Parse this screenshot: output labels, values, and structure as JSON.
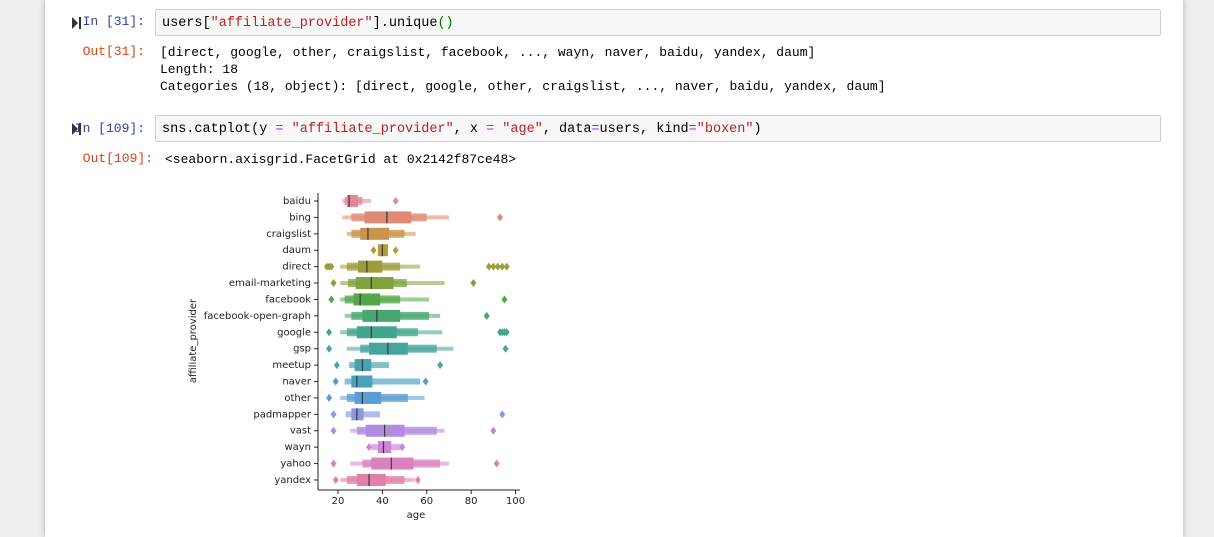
{
  "cells": [
    {
      "prompt": "In [31]:",
      "code": [
        "users[",
        "\"affiliate_provider\"",
        "].unique",
        "()"
      ],
      "output_prompt": "Out[31]:",
      "output": [
        "[direct, google, other, craigslist, facebook, ..., wayn, naver, baidu, yandex, daum]",
        "Length: 18",
        "Categories (18, object): [direct, google, other, craigslist, ..., naver, baidu, yandex, daum]"
      ]
    },
    {
      "prompt": "In [109]:",
      "code": [
        "sns.catplot(y ",
        "=",
        " ",
        "\"affiliate_provider\"",
        ", x ",
        "=",
        " ",
        "\"age\"",
        ", data",
        "=",
        "users, kind",
        "=",
        "\"boxen\"",
        ")"
      ],
      "output_prompt": "Out[109]:",
      "output": [
        "<seaborn.axisgrid.FacetGrid at 0x2142f87ce48>"
      ]
    }
  ],
  "chart_data": {
    "type": "boxen",
    "x_label": "age",
    "y_label": "affiliate_provider",
    "xlim": [
      11,
      102
    ],
    "xticks": [
      20,
      40,
      60,
      80,
      100
    ],
    "categories": [
      "baidu",
      "bing",
      "craigslist",
      "daum",
      "direct",
      "email-marketing",
      "facebook",
      "facebook-open-graph",
      "google",
      "gsp",
      "meetup",
      "naver",
      "other",
      "padmapper",
      "vast",
      "wayn",
      "yahoo",
      "yandex"
    ],
    "series": [
      {
        "color": "#e5879c",
        "median": 25,
        "boxes": [
          [
            22,
            35
          ],
          [
            23,
            31
          ],
          [
            24,
            29
          ]
        ],
        "outliers": [
          46
        ]
      },
      {
        "color": "#df8a74",
        "median": 42,
        "boxes": [
          [
            22,
            70
          ],
          [
            26,
            60
          ],
          [
            32,
            53
          ]
        ],
        "outliers": [
          93
        ]
      },
      {
        "color": "#c9944a",
        "median": 33.5,
        "boxes": [
          [
            24,
            55
          ],
          [
            26,
            50
          ],
          [
            30,
            43
          ]
        ],
        "outliers": []
      },
      {
        "color": "#b79a3a",
        "median": 40,
        "boxes": [
          [
            38,
            42.5
          ]
        ],
        "outliers": [
          36,
          46
        ]
      },
      {
        "color": "#9e9d3b",
        "median": 33,
        "boxes": [
          [
            21,
            57
          ],
          [
            24,
            48
          ],
          [
            29,
            40
          ]
        ],
        "outliers": [
          15,
          16,
          17,
          88,
          90,
          92,
          94,
          96
        ]
      },
      {
        "color": "#80a33e",
        "median": 35,
        "boxes": [
          [
            21,
            68
          ],
          [
            24.5,
            51
          ],
          [
            28,
            45
          ]
        ],
        "outliers": [
          18,
          81
        ]
      },
      {
        "color": "#55a649",
        "median": 30,
        "boxes": [
          [
            21,
            61
          ],
          [
            23,
            48
          ],
          [
            27,
            39
          ]
        ],
        "outliers": [
          17,
          95
        ]
      },
      {
        "color": "#46a76f",
        "median": 37.5,
        "boxes": [
          [
            23,
            66
          ],
          [
            26,
            61
          ],
          [
            31,
            48
          ]
        ],
        "outliers": [
          87
        ]
      },
      {
        "color": "#43a68c",
        "median": 35,
        "boxes": [
          [
            21,
            67
          ],
          [
            24,
            56
          ],
          [
            28.5,
            46.5
          ]
        ],
        "outliers": [
          16,
          93,
          94,
          95,
          96
        ]
      },
      {
        "color": "#45a59e",
        "median": 42.5,
        "boxes": [
          [
            24,
            72
          ],
          [
            30,
            64.5
          ],
          [
            34,
            51.5
          ]
        ],
        "outliers": [
          16,
          95.5
        ]
      },
      {
        "color": "#47a3ae",
        "median": 31,
        "boxes": [
          [
            25,
            43
          ],
          [
            27.5,
            35
          ]
        ],
        "outliers": [
          19.5,
          66
        ]
      },
      {
        "color": "#4aa1bf",
        "median": 28.5,
        "boxes": [
          [
            23,
            57
          ],
          [
            26,
            35.5
          ]
        ],
        "outliers": [
          19,
          59.5
        ]
      },
      {
        "color": "#5a9dd6",
        "median": 31,
        "boxes": [
          [
            21,
            59
          ],
          [
            24,
            51.5
          ],
          [
            27.5,
            39.5
          ]
        ],
        "outliers": [
          16
        ]
      },
      {
        "color": "#8a98e2",
        "median": 28.5,
        "boxes": [
          [
            23.5,
            39
          ],
          [
            26,
            31.5
          ]
        ],
        "outliers": [
          18,
          94
        ]
      },
      {
        "color": "#b18ce0",
        "median": 41,
        "boxes": [
          [
            25.5,
            68
          ],
          [
            28.5,
            64.5
          ],
          [
            32.5,
            50
          ]
        ],
        "outliers": [
          18,
          90
        ]
      },
      {
        "color": "#cb84d6",
        "median": 40.5,
        "boxes": [
          [
            35,
            49
          ],
          [
            38,
            44
          ]
        ],
        "outliers": [
          34,
          49
        ]
      },
      {
        "color": "#d982c0",
        "median": 44,
        "boxes": [
          [
            25.5,
            70
          ],
          [
            31,
            66
          ],
          [
            35,
            54
          ]
        ],
        "outliers": [
          18,
          91.5
        ]
      },
      {
        "color": "#e180a6",
        "median": 34,
        "boxes": [
          [
            21,
            54.5
          ],
          [
            24,
            50
          ],
          [
            28.5,
            41.5
          ]
        ],
        "outliers": [
          19,
          56
        ]
      }
    ]
  }
}
